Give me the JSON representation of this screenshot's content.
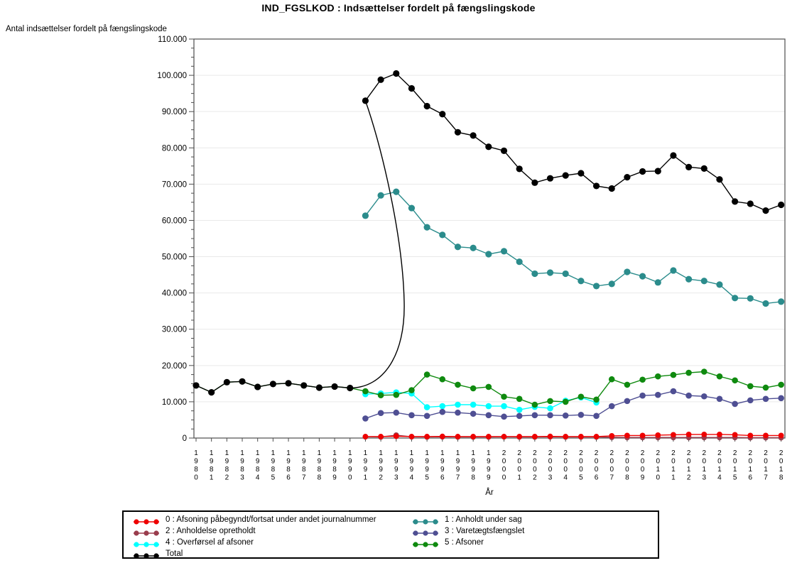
{
  "title": "IND_FGSLKOD : Indsættelser fordelt på fængslingskode",
  "chart_data": {
    "type": "line",
    "title": "IND_FGSLKOD : Indsættelser fordelt på fængslingskode",
    "ylabel": "Antal indsættelser fordelt på fængslingskode",
    "xlabel": "År",
    "ylim": [
      0,
      110000
    ],
    "ytick_interval": 10000,
    "ytick_minor_interval": 2500,
    "ytick_labels": [
      "0",
      "10.000",
      "20.000",
      "30.000",
      "40.000",
      "50.000",
      "60.000",
      "70.000",
      "80.000",
      "90.000",
      "100.000",
      "110.000"
    ],
    "grid": "horizontal-light",
    "legend_position": "bottom-box",
    "x": [
      1980,
      1981,
      1982,
      1983,
      1984,
      1985,
      1986,
      1987,
      1988,
      1989,
      1990,
      1991,
      1992,
      1993,
      1994,
      1995,
      1996,
      1997,
      1998,
      1999,
      2000,
      2001,
      2002,
      2003,
      2004,
      2005,
      2006,
      2007,
      2008,
      2009,
      2010,
      2011,
      2012,
      2013,
      2014,
      2015,
      2016,
      2017,
      2018
    ],
    "series": [
      {
        "name": "0 : Afsoning påbegyndt/fortsat under andet journalnummer",
        "color": "#EE0000",
        "start_year": 1991,
        "values": [
          400,
          400,
          500,
          400,
          400,
          450,
          400,
          400,
          400,
          400,
          400,
          400,
          450,
          400,
          400,
          400,
          600,
          700,
          700,
          800,
          900,
          1000,
          1000,
          1000,
          900,
          700,
          700,
          700
        ]
      },
      {
        "name": "1 : Anholdt under sag",
        "color": "#2B8C8C",
        "start_year": 1991,
        "values": [
          61300,
          66900,
          67900,
          63400,
          58100,
          56000,
          52700,
          52400,
          50700,
          51500,
          48600,
          45300,
          45600,
          45300,
          43300,
          41900,
          42500,
          45800,
          44600,
          42900,
          46200,
          43800,
          43300,
          42300,
          38600,
          38500,
          37100,
          37600
        ]
      },
      {
        "name": "2 : Anholdelse opretholdt",
        "color": "#9A3D4D",
        "start_year": 1991,
        "values": [
          350,
          300,
          800,
          350,
          300,
          350,
          300,
          300,
          300,
          350,
          300,
          300,
          350,
          300,
          300,
          300,
          200,
          150,
          150,
          150,
          150,
          150,
          150,
          150,
          150,
          100,
          100,
          100
        ]
      },
      {
        "name": "3 : Varetægtsfængslet",
        "color": "#4F4F93",
        "start_year": 1991,
        "values": [
          5400,
          6900,
          7000,
          6300,
          6100,
          7200,
          7000,
          6700,
          6300,
          5900,
          6100,
          6300,
          6300,
          6200,
          6400,
          6100,
          8800,
          10200,
          11700,
          11900,
          12900,
          11700,
          11500,
          10800,
          9400,
          10400,
          10800,
          11000
        ]
      },
      {
        "name": "4 : Overførsel af afsoner",
        "color": "#00FFFF",
        "start_year": 1991,
        "values": [
          12100,
          12300,
          12600,
          12300,
          8500,
          8800,
          9200,
          9200,
          8800,
          8800,
          7800,
          8600,
          8200,
          10300,
          11200,
          9800
        ]
      },
      {
        "name": "5 : Afsoner",
        "color": "#0F8A0F",
        "start_year": 1980,
        "values": [
          14500,
          12600,
          15400,
          15600,
          14100,
          14900,
          15100,
          14500,
          13900,
          14200,
          13800,
          12900,
          11800,
          11900,
          13200,
          17500,
          16200,
          14700,
          13700,
          14100,
          11400,
          10800,
          9200,
          10200,
          10000,
          11400,
          10600,
          16200,
          14700,
          16100,
          17000,
          17400,
          18000,
          18300,
          17000,
          15900,
          14300,
          13900,
          14700
        ]
      },
      {
        "name": "Total",
        "color": "#000000",
        "start_year": 1980,
        "spline_segment": [
          1990,
          1991
        ],
        "values": [
          14500,
          12600,
          15400,
          15600,
          14100,
          14900,
          15100,
          14500,
          13900,
          14200,
          13800,
          93000,
          98800,
          100500,
          96400,
          91500,
          89300,
          84300,
          83400,
          80300,
          79200,
          74200,
          70400,
          71600,
          72400,
          73000,
          69500,
          68800,
          71900,
          73500,
          73600,
          77900,
          74700,
          74300,
          71300,
          65200,
          64600,
          62700,
          64300
        ]
      }
    ],
    "draw_order": [
      2,
      0,
      4,
      3,
      5,
      1,
      6
    ],
    "legend_columns": [
      [
        0,
        2,
        4,
        6
      ],
      [
        1,
        3,
        5
      ]
    ]
  },
  "style_colors": {
    "frame": "#4D4D4D",
    "gridline": "#E9E9E9",
    "tick": "#4D4D4D"
  }
}
